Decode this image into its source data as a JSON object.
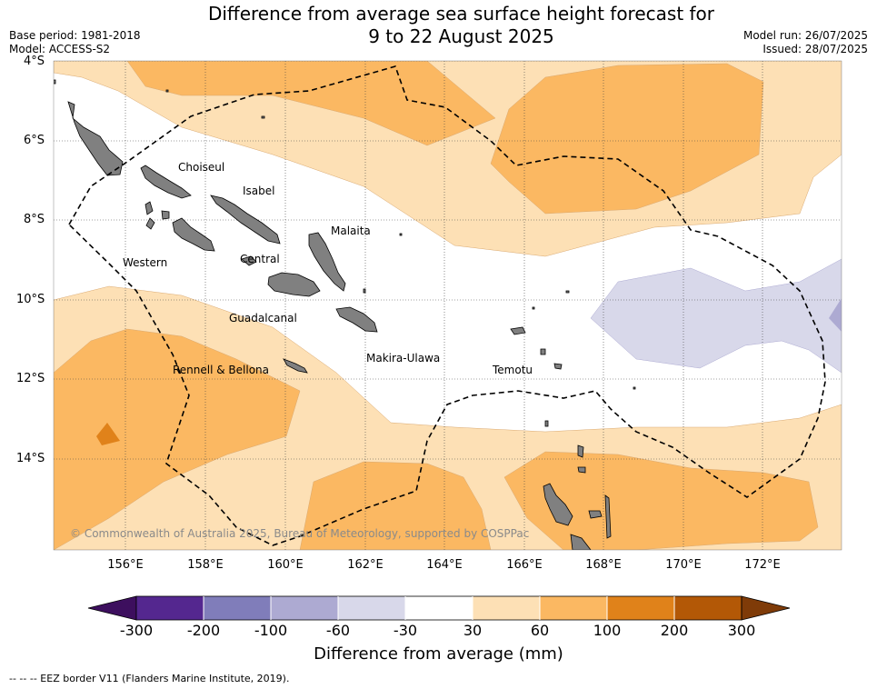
{
  "header": {
    "title_line1": "Difference from average sea surface height forecast for",
    "title_line2": "9 to 22 August 2025",
    "base_period": "Base period: 1981-2018",
    "model": "Model: ACCESS-S2",
    "model_run": "Model run: 26/07/2025",
    "issued": "Issued: 28/07/2025"
  },
  "axes": {
    "lat_labels": [
      "4°S",
      "6°S",
      "8°S",
      "10°S",
      "12°S",
      "14°S"
    ],
    "lon_labels": [
      "156°E",
      "158°E",
      "160°E",
      "162°E",
      "164°E",
      "166°E",
      "168°E",
      "170°E",
      "172°E"
    ]
  },
  "regions": [
    {
      "name": "Choiseul"
    },
    {
      "name": "Isabel"
    },
    {
      "name": "Malaita"
    },
    {
      "name": "Western"
    },
    {
      "name": "Central"
    },
    {
      "name": "Guadalcanal"
    },
    {
      "name": "Makira-Ulawa"
    },
    {
      "name": "Rennell & Bellona"
    },
    {
      "name": "Temotu"
    }
  ],
  "copyright": "© Commonwealth of Australia 2025, Bureau of Meteorology, supported by COSPPac",
  "colorbar": {
    "title": "Difference from average (mm)",
    "labels": [
      "-300",
      "-200",
      "-100",
      "-60",
      "-30",
      "30",
      "60",
      "100",
      "200",
      "300"
    ],
    "colors": [
      "#3d0f5e",
      "#54278f",
      "#807dba",
      "#adaad2",
      "#d8d8ea",
      "#ffffff",
      "#fde0b5",
      "#fbb862",
      "#e0821a",
      "#b35806",
      "#7f3b08"
    ]
  },
  "legend": {
    "eez": "--  --  -- EEZ border V11 (Flanders Marine Institute, 2019)."
  }
}
